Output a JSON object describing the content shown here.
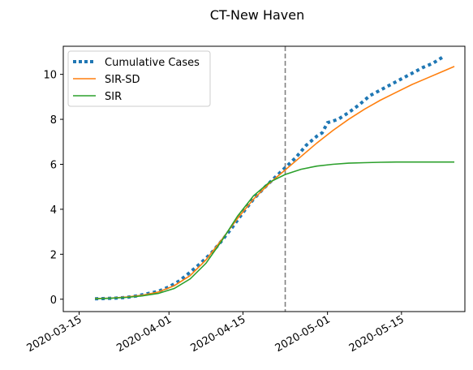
{
  "chart_data": {
    "type": "line",
    "title": "CT-New Haven",
    "xlabel": "",
    "ylabel": "",
    "x_axis": {
      "type": "date",
      "range": [
        "2020-03-12",
        "2020-05-27"
      ],
      "ticks": [
        "2020-03-15",
        "2020-04-01",
        "2020-04-15",
        "2020-05-01",
        "2020-05-15"
      ]
    },
    "y_axis": {
      "range": [
        -0.55,
        11.25
      ],
      "ticks": [
        0,
        2,
        4,
        6,
        8,
        10
      ]
    },
    "grid": false,
    "legend": "top-left",
    "vline": {
      "x": "2020-04-23",
      "color": "#808080",
      "style": "dashed"
    },
    "series": [
      {
        "name": "Cumulative Cases",
        "style": "dotted",
        "color": "#1f77b4",
        "points": [
          [
            "2020-03-18",
            0.02
          ],
          [
            "2020-03-20",
            0.03
          ],
          [
            "2020-03-22",
            0.05
          ],
          [
            "2020-03-24",
            0.08
          ],
          [
            "2020-03-26",
            0.15
          ],
          [
            "2020-03-28",
            0.25
          ],
          [
            "2020-03-30",
            0.35
          ],
          [
            "2020-04-01",
            0.55
          ],
          [
            "2020-04-03",
            0.82
          ],
          [
            "2020-04-05",
            1.2
          ],
          [
            "2020-04-07",
            1.6
          ],
          [
            "2020-04-09",
            2.05
          ],
          [
            "2020-04-11",
            2.6
          ],
          [
            "2020-04-13",
            3.2
          ],
          [
            "2020-04-15",
            3.85
          ],
          [
            "2020-04-17",
            4.45
          ],
          [
            "2020-04-19",
            4.95
          ],
          [
            "2020-04-21",
            5.4
          ],
          [
            "2020-04-23",
            5.85
          ],
          [
            "2020-04-25",
            6.3
          ],
          [
            "2020-04-27",
            6.85
          ],
          [
            "2020-04-29",
            7.25
          ],
          [
            "2020-04-30",
            7.4
          ],
          [
            "2020-05-01",
            7.85
          ],
          [
            "2020-05-03",
            8.0
          ],
          [
            "2020-05-05",
            8.3
          ],
          [
            "2020-05-07",
            8.65
          ],
          [
            "2020-05-09",
            9.05
          ],
          [
            "2020-05-11",
            9.3
          ],
          [
            "2020-05-13",
            9.55
          ],
          [
            "2020-05-15",
            9.8
          ],
          [
            "2020-05-17",
            10.05
          ],
          [
            "2020-05-19",
            10.3
          ],
          [
            "2020-05-21",
            10.5
          ],
          [
            "2020-05-23",
            10.8
          ]
        ]
      },
      {
        "name": "SIR-SD",
        "style": "solid",
        "color": "#ff7f0e",
        "points": [
          [
            "2020-03-18",
            0.03
          ],
          [
            "2020-03-21",
            0.05
          ],
          [
            "2020-03-24",
            0.1
          ],
          [
            "2020-03-27",
            0.18
          ],
          [
            "2020-03-30",
            0.32
          ],
          [
            "2020-04-02",
            0.6
          ],
          [
            "2020-04-05",
            1.05
          ],
          [
            "2020-04-08",
            1.75
          ],
          [
            "2020-04-11",
            2.65
          ],
          [
            "2020-04-14",
            3.6
          ],
          [
            "2020-04-17",
            4.45
          ],
          [
            "2020-04-20",
            5.15
          ],
          [
            "2020-04-23",
            5.75
          ],
          [
            "2020-04-26",
            6.35
          ],
          [
            "2020-04-29",
            6.95
          ],
          [
            "2020-05-02",
            7.5
          ],
          [
            "2020-05-05",
            8.0
          ],
          [
            "2020-05-08",
            8.45
          ],
          [
            "2020-05-11",
            8.85
          ],
          [
            "2020-05-14",
            9.2
          ],
          [
            "2020-05-17",
            9.55
          ],
          [
            "2020-05-20",
            9.85
          ],
          [
            "2020-05-23",
            10.15
          ],
          [
            "2020-05-25",
            10.35
          ]
        ]
      },
      {
        "name": "SIR",
        "style": "solid",
        "color": "#2ca02c",
        "points": [
          [
            "2020-03-18",
            0.02
          ],
          [
            "2020-03-21",
            0.04
          ],
          [
            "2020-03-24",
            0.08
          ],
          [
            "2020-03-27",
            0.15
          ],
          [
            "2020-03-30",
            0.26
          ],
          [
            "2020-04-02",
            0.48
          ],
          [
            "2020-04-05",
            0.9
          ],
          [
            "2020-04-08",
            1.6
          ],
          [
            "2020-04-11",
            2.6
          ],
          [
            "2020-04-14",
            3.7
          ],
          [
            "2020-04-17",
            4.6
          ],
          [
            "2020-04-20",
            5.2
          ],
          [
            "2020-04-23",
            5.55
          ],
          [
            "2020-04-26",
            5.78
          ],
          [
            "2020-04-29",
            5.92
          ],
          [
            "2020-05-02",
            6.0
          ],
          [
            "2020-05-05",
            6.05
          ],
          [
            "2020-05-08",
            6.07
          ],
          [
            "2020-05-11",
            6.09
          ],
          [
            "2020-05-14",
            6.1
          ],
          [
            "2020-05-17",
            6.1
          ],
          [
            "2020-05-20",
            6.1
          ],
          [
            "2020-05-25",
            6.1
          ]
        ]
      }
    ]
  }
}
